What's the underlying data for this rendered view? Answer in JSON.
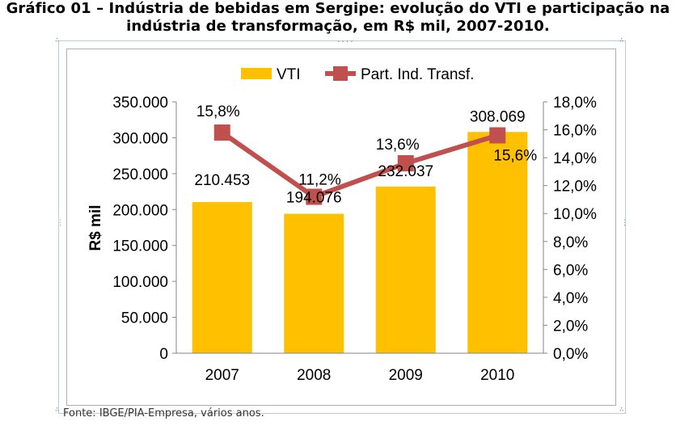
{
  "title_line1": "Gráfico 01 – Indústria de bebidas em Sergipe: evolução do VTI e participação na",
  "title_line2": "indústria de transformação, em R$ mil, 2007-2010.",
  "source": "Fonte: IBGE/PIA-Empresa, vários anos.",
  "colors": {
    "bar": "#FFC000",
    "line": "#C0504D",
    "marker": "#C0504D"
  },
  "chart_data": {
    "type": "bar",
    "categories": [
      "2007",
      "2008",
      "2009",
      "2010"
    ],
    "series": [
      {
        "name": "VTI",
        "type": "bar",
        "axis": "left",
        "values": [
          210453,
          194076,
          232037,
          308069
        ],
        "labels": [
          "210.453",
          "194.076",
          "232.037",
          "308.069"
        ]
      },
      {
        "name": "Part. Ind. Transf.",
        "type": "line",
        "axis": "right",
        "values": [
          15.8,
          11.2,
          13.6,
          15.6
        ],
        "labels": [
          "15,8%",
          "11,2%",
          "13,6%",
          "15,6%"
        ]
      }
    ],
    "ylabel": "R$ mil",
    "ylim": [
      0,
      350000
    ],
    "yticks": [
      "0",
      "50.000",
      "100.000",
      "150.000",
      "200.000",
      "250.000",
      "300.000",
      "350.000"
    ],
    "y2lim": [
      0,
      18
    ],
    "y2ticks": [
      "0,0%",
      "2,0%",
      "4,0%",
      "6,0%",
      "8,0%",
      "10,0%",
      "12,0%",
      "14,0%",
      "16,0%",
      "18,0%"
    ],
    "legend": "top",
    "grid": false
  }
}
